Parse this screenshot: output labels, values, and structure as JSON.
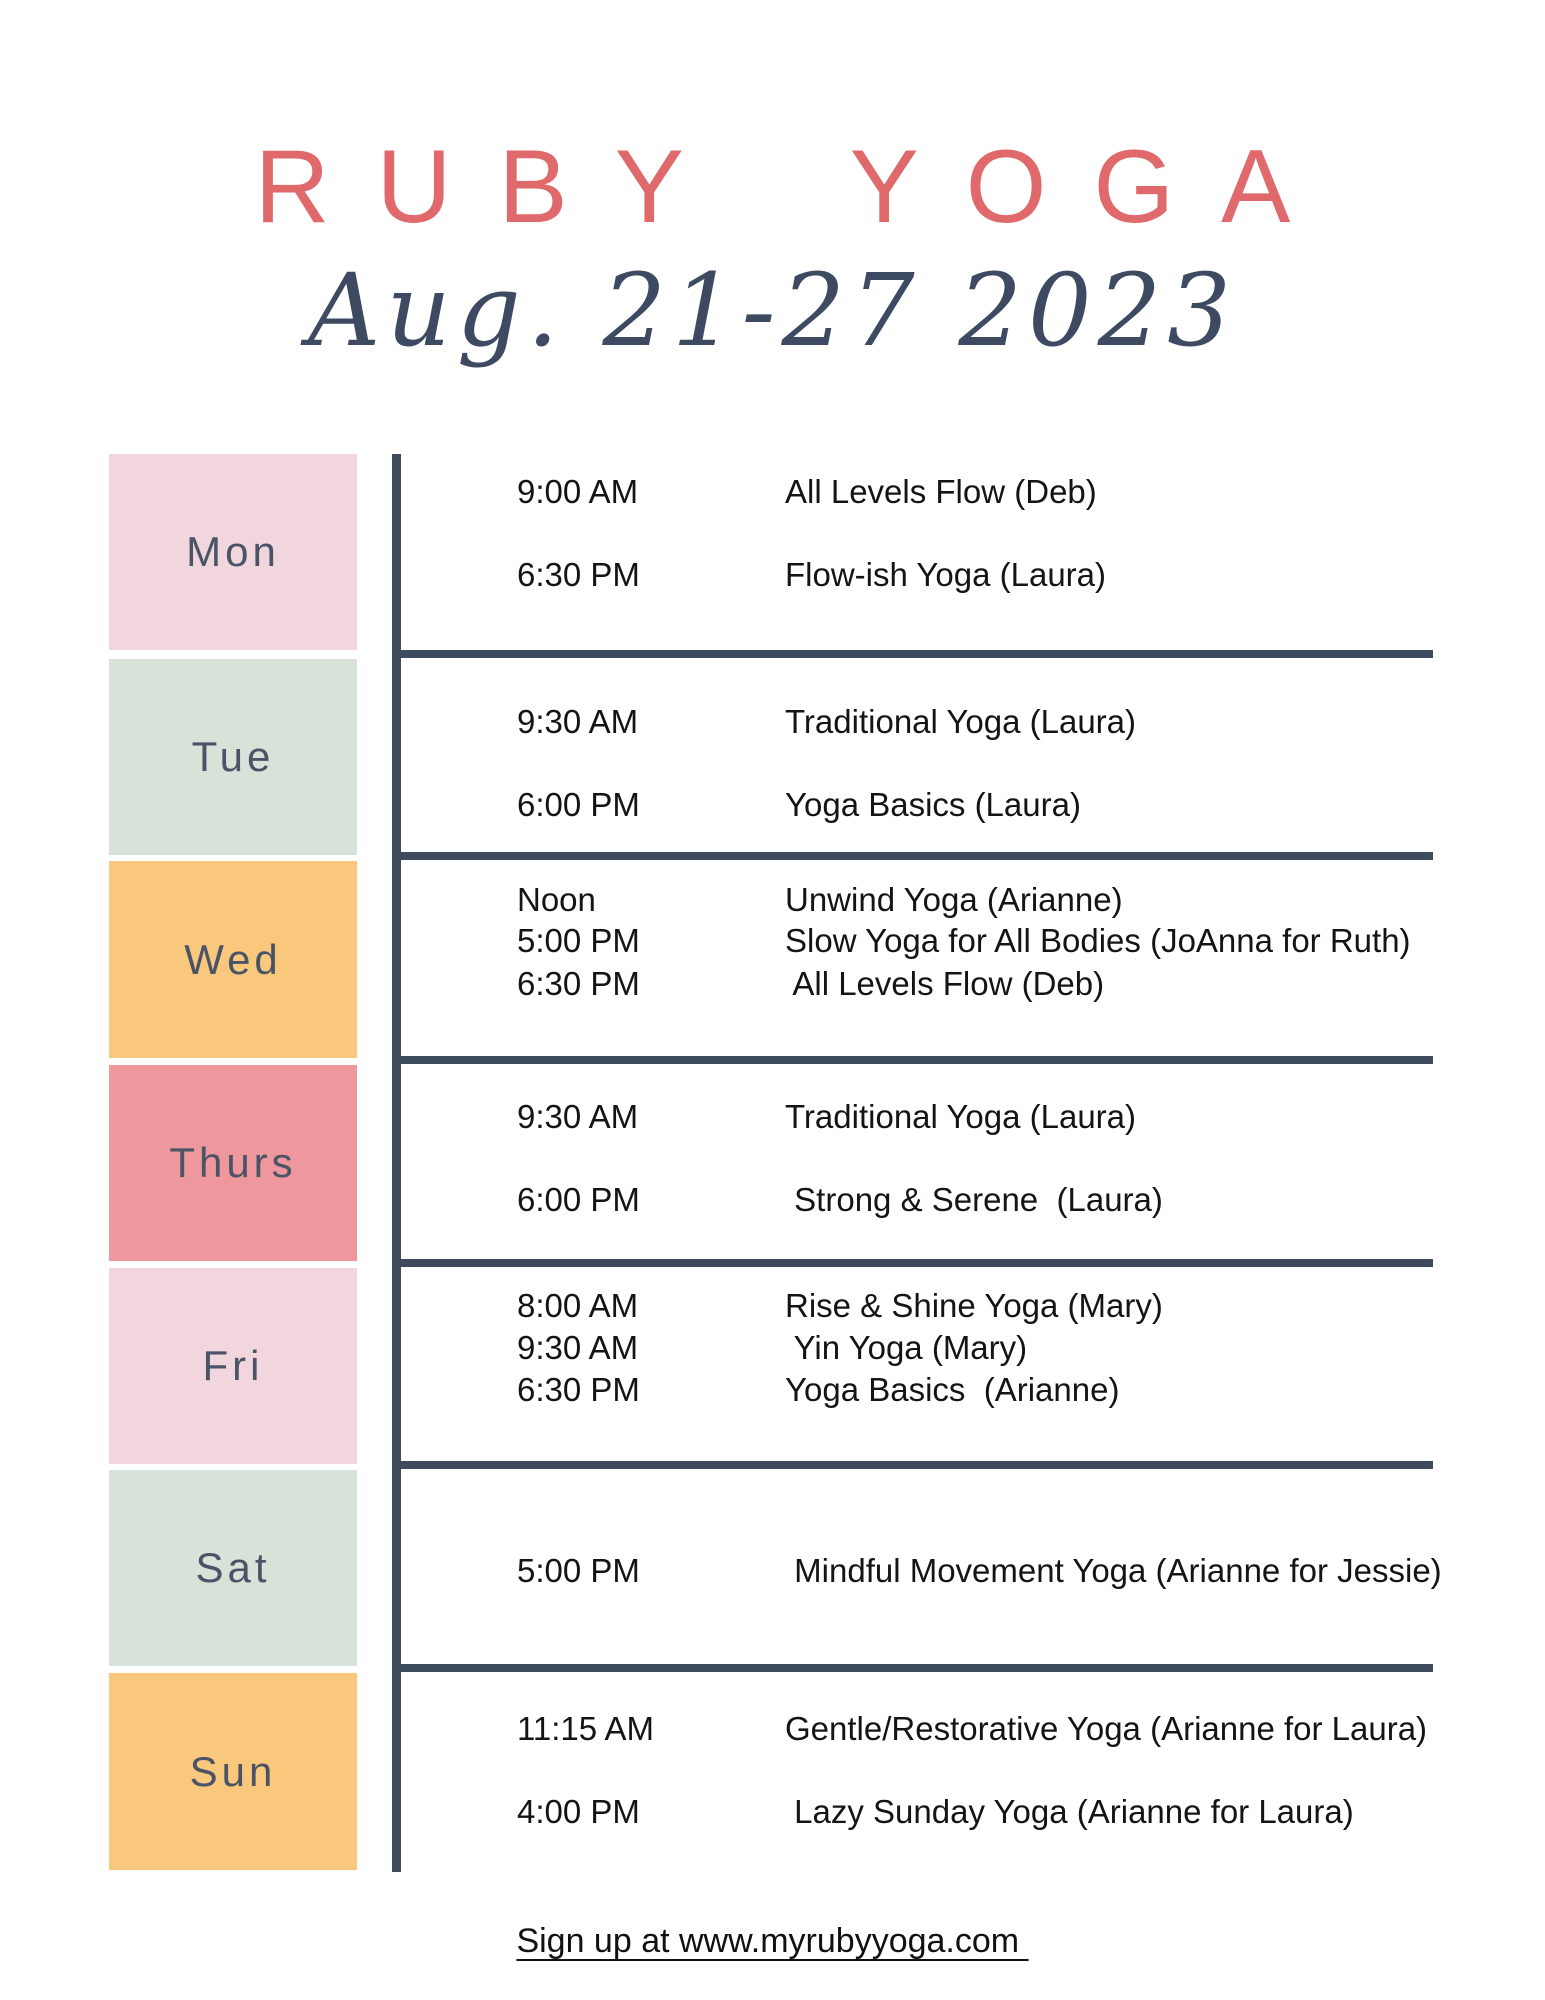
{
  "header": {
    "title": "RUBY YOGA",
    "date_range": "Aug. 21-27 2023"
  },
  "days": [
    {
      "label": "Mon",
      "color": "#F2D6DD",
      "events": [
        {
          "time": "9:00 AM",
          "class": "All Levels Flow (Deb)"
        },
        {
          "time": "6:30 PM",
          "class": "Flow-ish Yoga (Laura)"
        }
      ]
    },
    {
      "label": "Tue",
      "color": "#D7E3D9",
      "events": [
        {
          "time": "9:30 AM",
          "class": "Traditional Yoga (Laura)"
        },
        {
          "time": "6:00 PM",
          "class": "Yoga Basics (Laura)"
        }
      ]
    },
    {
      "label": "Wed",
      "color": "#F9C87D",
      "events": [
        {
          "time": "Noon",
          "class": "Unwind Yoga (Arianne)"
        },
        {
          "time": "5:00 PM",
          "class": "Slow Yoga for All Bodies (JoAnna for Ruth)"
        },
        {
          "time": "6:30 PM",
          "class": " All Levels Flow (Deb)"
        }
      ]
    },
    {
      "label": "Thurs",
      "color": "#EE979C",
      "events": [
        {
          "time": "9:30 AM",
          "class": "Traditional Yoga (Laura)"
        },
        {
          "time": "6:00 PM",
          "class": " Strong & Serene  (Laura)"
        }
      ]
    },
    {
      "label": "Fri",
      "color": "#F2D6DD",
      "events": [
        {
          "time": "8:00 AM",
          "class": "Rise & Shine Yoga (Mary)"
        },
        {
          "time": "9:30 AM",
          "class": " Yin Yoga (Mary)"
        },
        {
          "time": "6:30 PM",
          "class": "Yoga Basics  (Arianne)"
        }
      ]
    },
    {
      "label": "Sat",
      "color": "#D7E3D9",
      "events": [
        {
          "time": "5:00 PM",
          "class": " Mindful Movement Yoga (Arianne for Jessie)"
        }
      ]
    },
    {
      "label": "Sun",
      "color": "#F9C87D",
      "events": [
        {
          "time": "11:15 AM",
          "class": "Gentle/Restorative Yoga (Arianne for Laura)"
        },
        {
          "time": "4:00 PM",
          "class": " Lazy Sunday Yoga (Arianne for Laura)"
        }
      ]
    }
  ],
  "footer": {
    "signup_text": "Sign up at www.myrubyyoga.com "
  },
  "colors": {
    "title_coral": "#E0696C",
    "subtitle_slate": "#3D4A61",
    "rule_slate": "#3E4A5D",
    "day_label": "#4A5466",
    "pink_block": "#F2D6DD",
    "green_block": "#D7E3D9",
    "orange_block": "#F9C87D",
    "coral_block": "#EE979C"
  }
}
